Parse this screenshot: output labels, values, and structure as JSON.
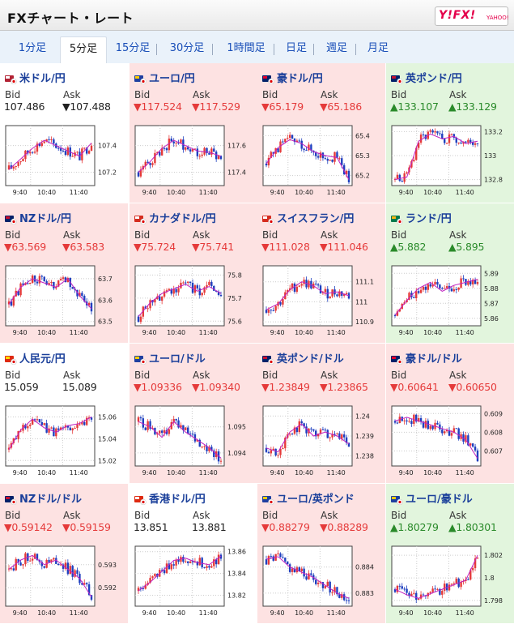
{
  "header": {
    "title": "FXチャート・レート",
    "logo_text": "Y!FX!",
    "logo_sub": "YAHOO!"
  },
  "tabs": [
    {
      "label": "1分足",
      "active": false
    },
    {
      "label": "5分足",
      "active": true
    },
    {
      "label": "15分足",
      "active": false
    },
    {
      "label": "30分足",
      "active": false
    },
    {
      "label": "1時間足",
      "active": false
    },
    {
      "label": "日足",
      "active": false
    },
    {
      "label": "週足",
      "active": false
    },
    {
      "label": "月足",
      "active": false
    }
  ],
  "labels": {
    "bid": "Bid",
    "ask": "Ask"
  },
  "colors": {
    "up": "#e53a3a",
    "down": "#1f3fbf",
    "ma": "#c020c0",
    "downText": "#e53a3a",
    "upText": "#2a8a2a"
  },
  "pairs": [
    {
      "name": "米ドル/円",
      "flag": "us-jp-flag",
      "state": "neutral",
      "dir": "flat",
      "bid": "107.486",
      "ask": "▼107.488",
      "chart": {
        "times": [
          "9:40",
          "10:40",
          "11:40"
        ],
        "yticks": [
          "107.4",
          "107.2"
        ],
        "ymin": 107.1,
        "ymax": 107.55,
        "trend": [
          107.22,
          107.3,
          107.38,
          107.44,
          107.4,
          107.36,
          107.32,
          107.42
        ]
      }
    },
    {
      "name": "ユーロ/円",
      "flag": "eu-jp-flag",
      "state": "down",
      "dir": "down",
      "bid": "▼117.524",
      "ask": "▼117.529",
      "chart": {
        "times": [
          "9:40",
          "10:40",
          "11:40"
        ],
        "yticks": [
          "117.6",
          "117.4"
        ],
        "ymin": 117.3,
        "ymax": 117.75,
        "trend": [
          117.4,
          117.48,
          117.58,
          117.64,
          117.6,
          117.56,
          117.55,
          117.52
        ]
      }
    },
    {
      "name": "豪ドル/円",
      "flag": "au-jp-flag",
      "state": "down",
      "dir": "down",
      "bid": "▼65.179",
      "ask": "▼65.186",
      "chart": {
        "times": [
          "9:40",
          "10:40",
          "11:40"
        ],
        "yticks": [
          "65.4",
          "65.3",
          "65.2"
        ],
        "ymin": 65.15,
        "ymax": 65.45,
        "trend": [
          65.26,
          65.34,
          65.38,
          65.36,
          65.32,
          65.3,
          65.29,
          65.18
        ]
      }
    },
    {
      "name": "英ポンド/円",
      "flag": "uk-jp-flag",
      "state": "up",
      "dir": "up",
      "bid": "▲133.107",
      "ask": "▲133.129",
      "chart": {
        "times": [
          "9:40",
          "10:40",
          "11:40"
        ],
        "yticks": [
          "133.2",
          "133",
          "132.8"
        ],
        "ymin": 132.75,
        "ymax": 133.25,
        "trend": [
          132.8,
          132.82,
          133.12,
          133.18,
          133.14,
          133.16,
          133.1,
          133.12
        ]
      }
    },
    {
      "name": "NZドル/円",
      "flag": "nz-jp-flag",
      "state": "down",
      "dir": "down",
      "bid": "▼63.569",
      "ask": "▼63.583",
      "chart": {
        "times": [
          "9:40",
          "10:40",
          "11:40"
        ],
        "yticks": [
          "63.7",
          "63.6",
          "63.5"
        ],
        "ymin": 63.48,
        "ymax": 63.76,
        "trend": [
          63.58,
          63.66,
          63.7,
          63.68,
          63.66,
          63.7,
          63.62,
          63.56
        ]
      }
    },
    {
      "name": "カナダドル/円",
      "flag": "ca-jp-flag",
      "state": "down",
      "dir": "down",
      "bid": "▼75.724",
      "ask": "▼75.741",
      "chart": {
        "times": [
          "9:40",
          "10:40",
          "11:40"
        ],
        "yticks": [
          "75.8",
          "75.7",
          "75.6"
        ],
        "ymin": 75.58,
        "ymax": 75.84,
        "trend": [
          75.62,
          75.68,
          75.72,
          75.74,
          75.76,
          75.73,
          75.75,
          75.72
        ]
      }
    },
    {
      "name": "スイスフラン/円",
      "flag": "ch-jp-flag",
      "state": "down",
      "dir": "down",
      "bid": "▼111.028",
      "ask": "▼111.046",
      "chart": {
        "times": [
          "9:40",
          "10:40",
          "11:40"
        ],
        "yticks": [
          "111.1",
          "111",
          "110.9"
        ],
        "ymin": 110.88,
        "ymax": 111.18,
        "trend": [
          110.96,
          110.99,
          111.06,
          111.1,
          111.08,
          111.04,
          111.05,
          111.03
        ]
      }
    },
    {
      "name": "ランド/円",
      "flag": "za-jp-flag",
      "state": "up",
      "dir": "up",
      "bid": "▲5.882",
      "ask": "▲5.895",
      "chart": {
        "times": [
          "9:40",
          "10:40",
          "11:40"
        ],
        "yticks": [
          "5.89",
          "5.88",
          "5.87",
          "5.86"
        ],
        "ymin": 5.855,
        "ymax": 5.895,
        "trend": [
          5.862,
          5.872,
          5.88,
          5.884,
          5.878,
          5.882,
          5.884,
          5.886
        ]
      }
    },
    {
      "name": "人民元/円",
      "flag": "cn-jp-flag",
      "state": "neutral",
      "dir": "flat",
      "bid": "15.059",
      "ask": "15.089",
      "chart": {
        "times": [
          "9:40",
          "10:40",
          "11:40"
        ],
        "yticks": [
          "15.06",
          "15.04",
          "15.02"
        ],
        "ymin": 15.015,
        "ymax": 15.07,
        "trend": [
          15.03,
          15.048,
          15.058,
          15.05,
          15.046,
          15.052,
          15.054,
          15.06
        ]
      }
    },
    {
      "name": "ユーロ/ドル",
      "flag": "eu-us-flag",
      "state": "down",
      "dir": "down",
      "bid": "▼1.09336",
      "ask": "▼1.09340",
      "chart": {
        "times": [
          "9:40",
          "10:40",
          "11:40"
        ],
        "yticks": [
          "1.095",
          "1.094"
        ],
        "ymin": 1.0935,
        "ymax": 1.0958,
        "trend": [
          1.0952,
          1.095,
          1.0946,
          1.0952,
          1.0948,
          1.0945,
          1.0942,
          1.0938
        ]
      }
    },
    {
      "name": "英ポンド/ドル",
      "flag": "uk-us-flag",
      "state": "down",
      "dir": "down",
      "bid": "▼1.23849",
      "ask": "▼1.23865",
      "chart": {
        "times": [
          "9:40",
          "10:40",
          "11:40"
        ],
        "yticks": [
          "1.24",
          "1.239",
          "1.238"
        ],
        "ymin": 1.2375,
        "ymax": 1.2405,
        "trend": [
          1.2384,
          1.2382,
          1.2392,
          1.2396,
          1.239,
          1.2392,
          1.239,
          1.2386
        ]
      }
    },
    {
      "name": "豪ドル/ドル",
      "flag": "au-us-flag",
      "state": "down",
      "dir": "down",
      "bid": "▼0.60641",
      "ask": "▼0.60650",
      "chart": {
        "times": [
          "9:40",
          "10:40",
          "11:40"
        ],
        "yticks": [
          "0.609",
          "0.608",
          "0.607"
        ],
        "ymin": 0.6062,
        "ymax": 0.6094,
        "trend": [
          0.6086,
          0.6088,
          0.6086,
          0.6084,
          0.6082,
          0.608,
          0.6076,
          0.6066
        ]
      }
    },
    {
      "name": "NZドル/ドル",
      "flag": "nz-us-flag",
      "state": "down",
      "dir": "down",
      "bid": "▼0.59142",
      "ask": "▼0.59159",
      "chart": {
        "times": [
          "9:40",
          "10:40",
          "11:40"
        ],
        "yticks": [
          "0.593",
          "0.592"
        ],
        "ymin": 0.5912,
        "ymax": 0.5938,
        "trend": [
          0.5928,
          0.5932,
          0.5934,
          0.593,
          0.5932,
          0.5928,
          0.5924,
          0.5916
        ]
      }
    },
    {
      "name": "香港ドル/円",
      "flag": "hk-jp-flag",
      "state": "neutral",
      "dir": "flat",
      "bid": "13.851",
      "ask": "13.881",
      "chart": {
        "times": [
          "9:40",
          "10:40",
          "11:40"
        ],
        "yticks": [
          "13.86",
          "13.84",
          "13.82"
        ],
        "ymin": 13.81,
        "ymax": 13.865,
        "trend": [
          13.824,
          13.832,
          13.842,
          13.852,
          13.854,
          13.85,
          13.848,
          13.856
        ]
      }
    },
    {
      "name": "ユーロ/英ポンド",
      "flag": "eu-uk-flag",
      "state": "down",
      "dir": "down",
      "bid": "▼0.88279",
      "ask": "▼0.88289",
      "chart": {
        "times": [
          "9:40",
          "10:40",
          "11:40"
        ],
        "yticks": [
          "0.884",
          "0.883"
        ],
        "ymin": 0.8825,
        "ymax": 0.8848,
        "trend": [
          0.8843,
          0.8844,
          0.884,
          0.8838,
          0.8836,
          0.8833,
          0.883,
          0.8828
        ]
      }
    },
    {
      "name": "ユーロ/豪ドル",
      "flag": "eu-au-flag",
      "state": "up",
      "dir": "up",
      "bid": "▲1.80279",
      "ask": "▲1.80301",
      "chart": {
        "times": [
          "9:40",
          "10:40",
          "11:40"
        ],
        "yticks": [
          "1.802",
          "1.8",
          "1.798"
        ],
        "ymin": 1.7975,
        "ymax": 1.8028,
        "trend": [
          1.799,
          1.7985,
          1.7982,
          1.7986,
          1.799,
          1.7994,
          1.7998,
          1.802
        ]
      }
    }
  ]
}
